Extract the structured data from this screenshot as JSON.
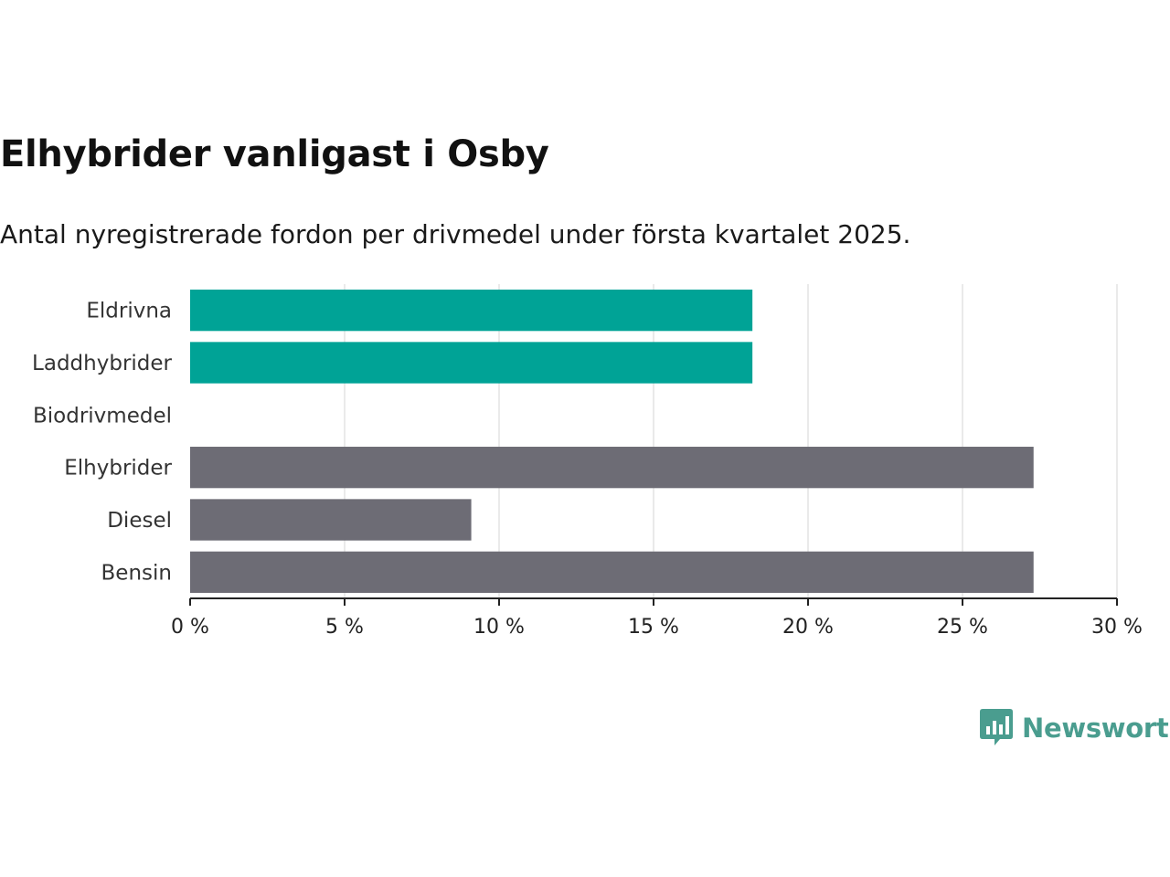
{
  "title": "Elhybrider vanligast i Osby",
  "subtitle": "Antal nyregistrerade fordon per drivmedel under första kvartalet 2025.",
  "brand": {
    "name": "Newsworthy",
    "color": "#4a9d8f",
    "icon": "newsworthy-bar-chart-icon"
  },
  "colors": {
    "highlight": "#00a396",
    "default": "#6d6c75",
    "grid": "#e3e3e3",
    "axis": "#222222"
  },
  "chart_data": {
    "type": "bar",
    "orientation": "horizontal",
    "categories": [
      "Eldrivna",
      "Laddhybrider",
      "Biodrivmedel",
      "Elhybrider",
      "Diesel",
      "Bensin"
    ],
    "values": [
      18.2,
      18.2,
      0,
      27.3,
      9.1,
      27.3
    ],
    "highlight": [
      true,
      true,
      false,
      false,
      false,
      false
    ],
    "xlim": [
      0,
      30
    ],
    "xticks": [
      0,
      5,
      10,
      15,
      20,
      25,
      30
    ],
    "xtick_labels": [
      "0 %",
      "5 %",
      "10 %",
      "15 %",
      "20 %",
      "25 %",
      "30 %"
    ],
    "grid": "vertical"
  }
}
